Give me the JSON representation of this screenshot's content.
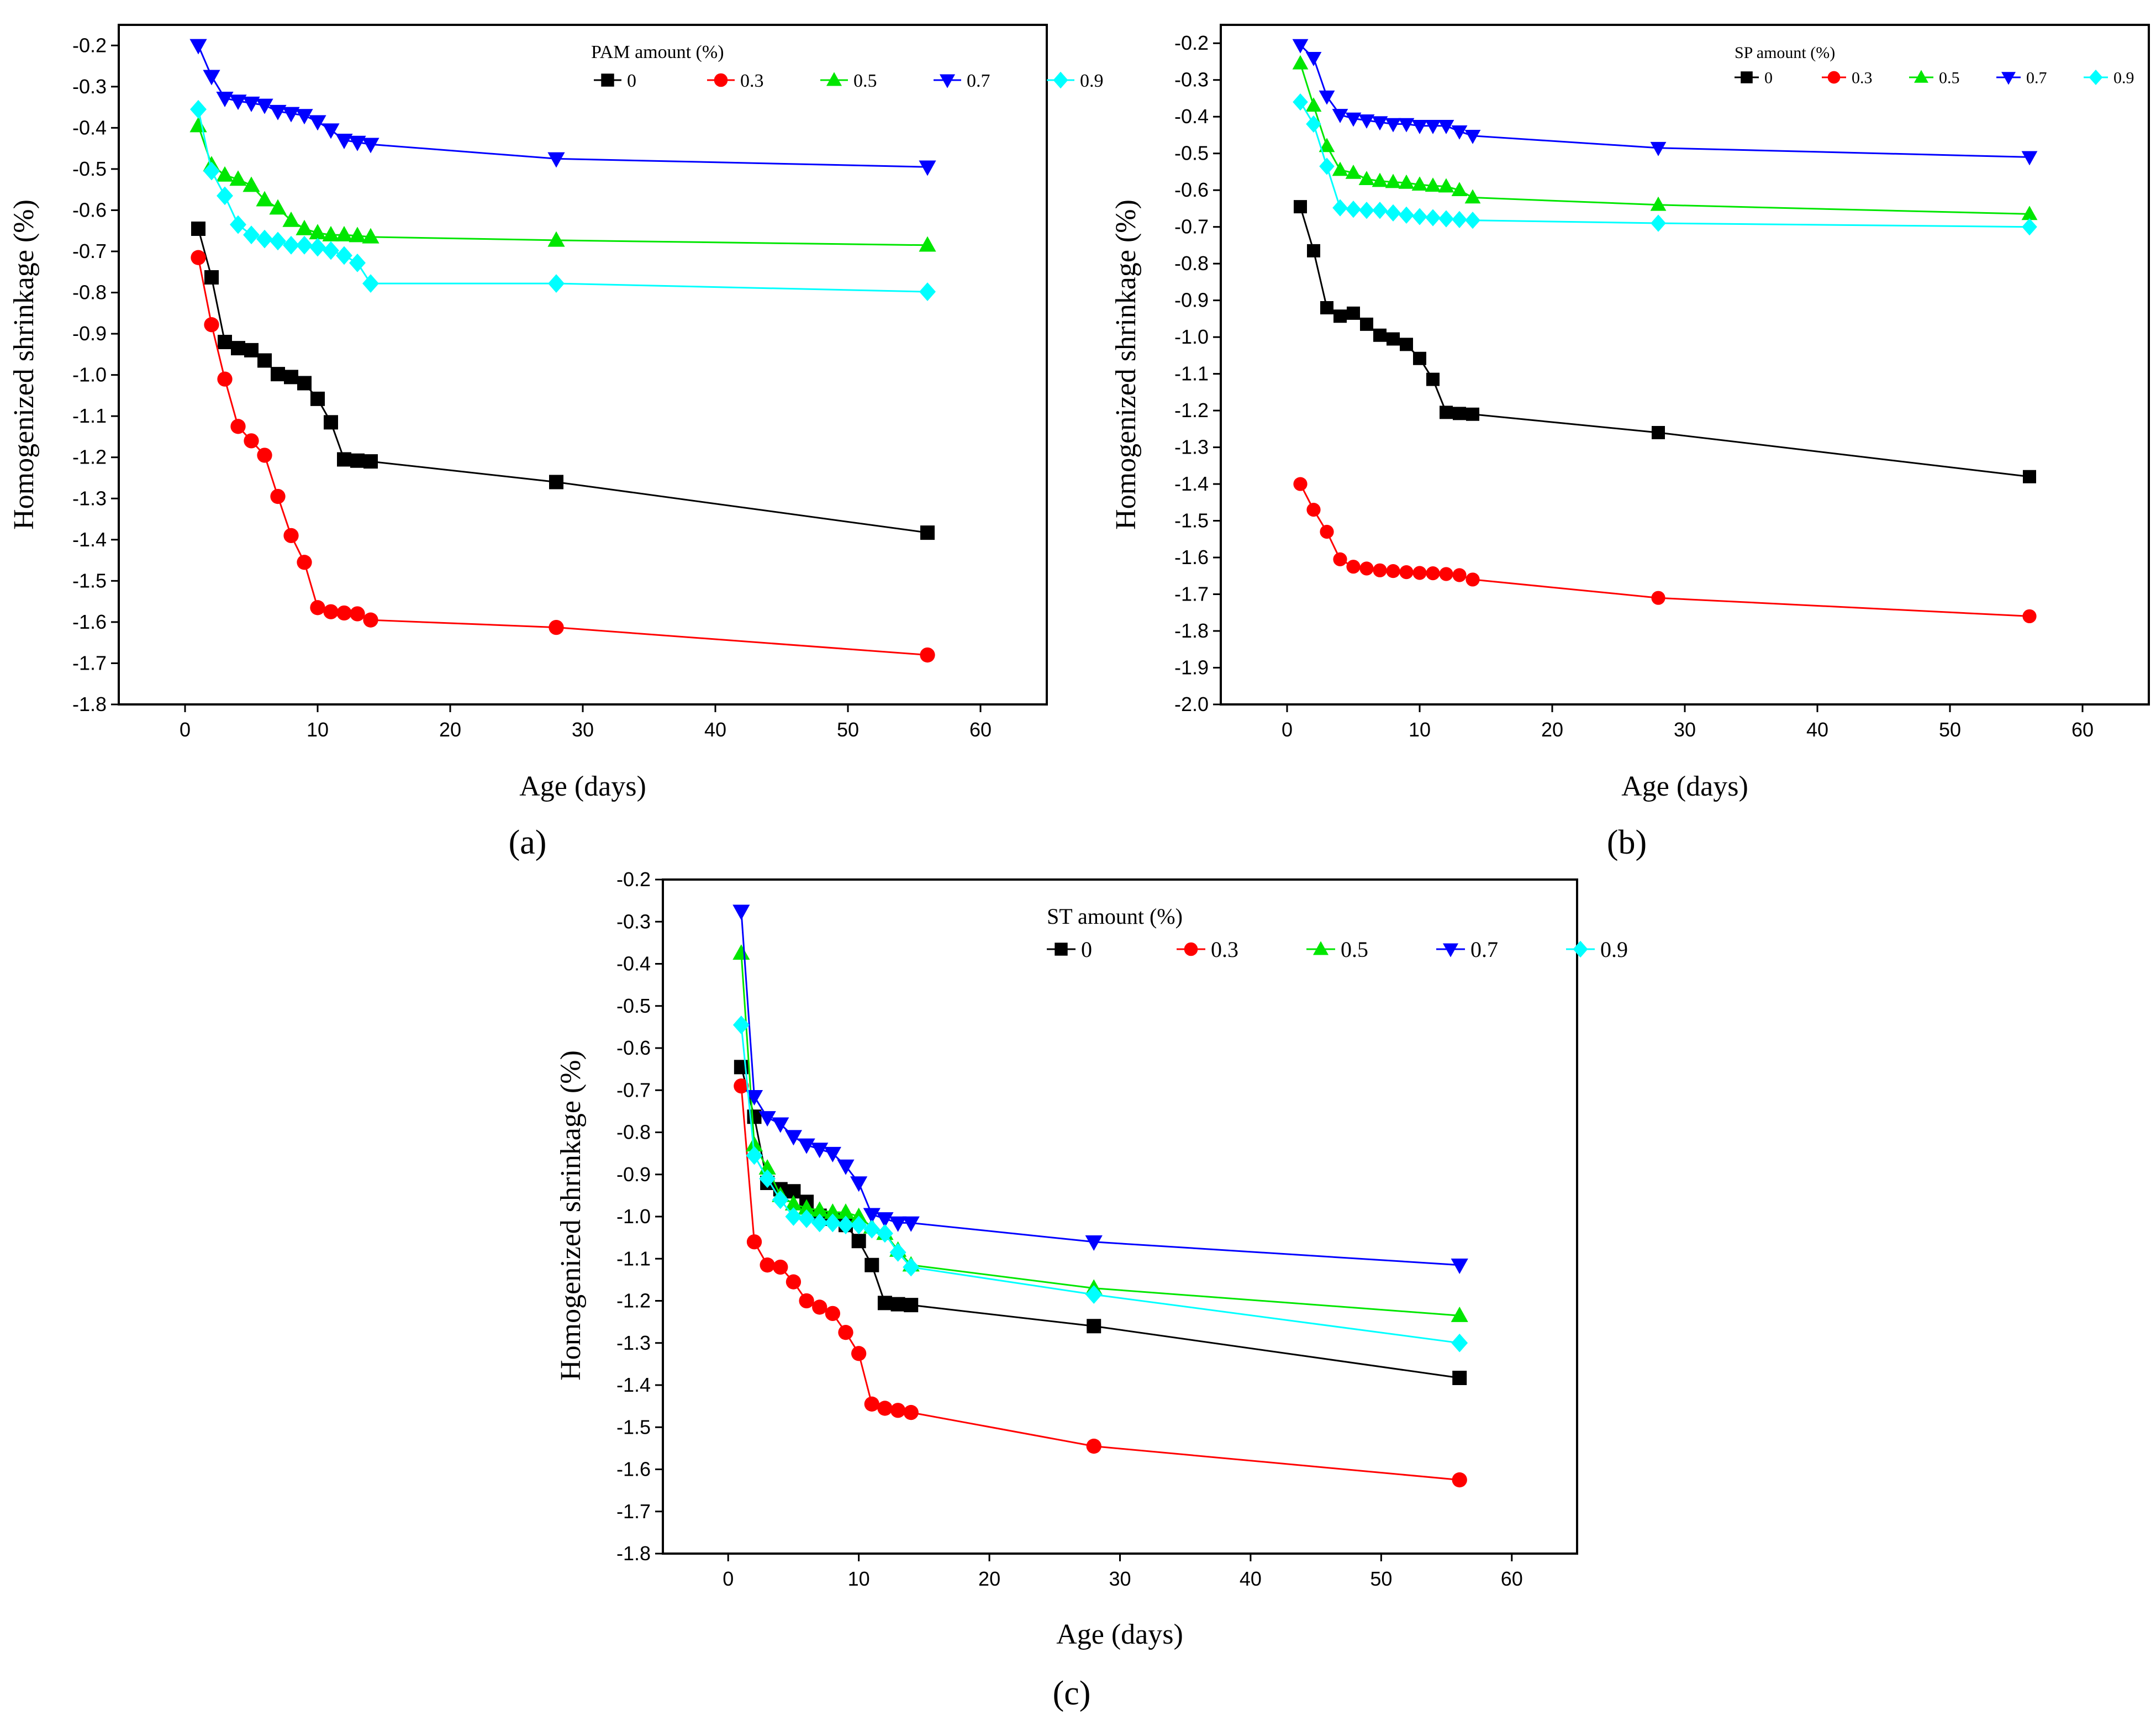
{
  "series_colors": {
    "0": "#000000",
    "0.3": "#ff0000",
    "0.5": "#00e600",
    "0.7": "#0000ff",
    "0.9": "#00ffff"
  },
  "chart_data": [
    {
      "type": "line",
      "panel": "(a)",
      "xlabel": "Age (days)",
      "ylabel": "Homogenized shrinkage (%)",
      "xlim": [
        -5,
        65
      ],
      "ylim": [
        -1.8,
        -0.15
      ],
      "xticks": [
        0,
        10,
        20,
        30,
        40,
        50,
        60
      ],
      "yticks": [
        -0.2,
        -0.3,
        -0.4,
        -0.5,
        -0.6,
        -0.7,
        -0.8,
        -0.9,
        -1.0,
        -1.1,
        -1.2,
        -1.3,
        -1.4,
        -1.5,
        -1.6,
        -1.7,
        -1.8
      ],
      "ytick_labels": [
        "-0.2",
        "-0.3",
        "-0.4",
        "-0.5",
        "-0.6",
        "-0.7",
        "-0.8",
        "-0.9",
        "-1.0",
        "-1.1",
        "-1.2",
        "-1.3",
        "-1.4",
        "-1.5",
        "-1.6",
        "-1.7",
        "-1.8"
      ],
      "legend_title": "PAM amount (%)",
      "legend_position": "top-right",
      "x": [
        1,
        2,
        3,
        4,
        5,
        6,
        7,
        8,
        9,
        10,
        11,
        12,
        13,
        14,
        28,
        56
      ],
      "series": [
        {
          "name": "0",
          "marker": "square",
          "values": [
            -0.645,
            -0.763,
            -0.92,
            -0.935,
            -0.94,
            -0.965,
            -0.998,
            -1.005,
            -1.02,
            -1.058,
            -1.115,
            -1.205,
            -1.208,
            -1.21,
            -1.26,
            -1.383
          ]
        },
        {
          "name": "0.3",
          "marker": "circle",
          "values": [
            -0.715,
            -0.878,
            -1.01,
            -1.125,
            -1.16,
            -1.195,
            -1.295,
            -1.39,
            -1.455,
            -1.565,
            -1.575,
            -1.578,
            -1.58,
            -1.595,
            -1.613,
            -1.68
          ]
        },
        {
          "name": "0.5",
          "marker": "triangle-up",
          "values": [
            -0.395,
            -0.49,
            -0.515,
            -0.525,
            -0.54,
            -0.575,
            -0.595,
            -0.625,
            -0.645,
            -0.655,
            -0.66,
            -0.66,
            -0.662,
            -0.665,
            -0.673,
            -0.685
          ]
        },
        {
          "name": "0.7",
          "marker": "triangle-down",
          "values": [
            -0.2,
            -0.275,
            -0.328,
            -0.335,
            -0.34,
            -0.345,
            -0.36,
            -0.365,
            -0.37,
            -0.385,
            -0.405,
            -0.43,
            -0.435,
            -0.44,
            -0.475,
            -0.495
          ]
        },
        {
          "name": "0.9",
          "marker": "diamond",
          "values": [
            -0.355,
            -0.505,
            -0.565,
            -0.635,
            -0.66,
            -0.67,
            -0.675,
            -0.685,
            -0.685,
            -0.69,
            -0.698,
            -0.71,
            -0.728,
            -0.778,
            -0.778,
            -0.798
          ]
        }
      ]
    },
    {
      "type": "line",
      "panel": "(b)",
      "xlabel": "Age (days)",
      "ylabel": "Homogenized shrinkage (%)",
      "xlim": [
        -5,
        65
      ],
      "ylim": [
        -2.0,
        -0.15
      ],
      "xticks": [
        0,
        10,
        20,
        30,
        40,
        50,
        60
      ],
      "yticks": [
        -0.2,
        -0.3,
        -0.4,
        -0.5,
        -0.6,
        -0.7,
        -0.8,
        -0.9,
        -1.0,
        -1.1,
        -1.2,
        -1.3,
        -1.4,
        -1.5,
        -1.6,
        -1.7,
        -1.8,
        -1.9,
        -2.0
      ],
      "ytick_labels": [
        "-0.2",
        "-0.3",
        "-0.4",
        "-0.5",
        "-0.6",
        "-0.7",
        "-0.8",
        "-0.9",
        "-1.0",
        "-1.1",
        "-1.2",
        "-1.3",
        "-1.4",
        "-1.5",
        "-1.6",
        "-1.7",
        "-1.8",
        "-1.9",
        "-2.0"
      ],
      "legend_title": "SP amount (%)",
      "legend_position": "top-right",
      "x": [
        1,
        2,
        3,
        4,
        5,
        6,
        7,
        8,
        9,
        10,
        11,
        12,
        13,
        14,
        28,
        56
      ],
      "series": [
        {
          "name": "0",
          "marker": "square",
          "values": [
            -0.645,
            -0.765,
            -0.92,
            -0.943,
            -0.935,
            -0.965,
            -0.995,
            -1.005,
            -1.02,
            -1.058,
            -1.115,
            -1.205,
            -1.208,
            -1.21,
            -1.26,
            -1.38
          ]
        },
        {
          "name": "0.3",
          "marker": "circle",
          "values": [
            -1.4,
            -1.47,
            -1.53,
            -1.605,
            -1.625,
            -1.63,
            -1.635,
            -1.637,
            -1.64,
            -1.642,
            -1.643,
            -1.645,
            -1.648,
            -1.66,
            -1.71,
            -1.76
          ]
        },
        {
          "name": "0.5",
          "marker": "triangle-up",
          "values": [
            -0.255,
            -0.37,
            -0.48,
            -0.545,
            -0.553,
            -0.57,
            -0.575,
            -0.578,
            -0.58,
            -0.585,
            -0.588,
            -0.59,
            -0.6,
            -0.62,
            -0.64,
            -0.665
          ]
        },
        {
          "name": "0.7",
          "marker": "triangle-down",
          "values": [
            -0.205,
            -0.24,
            -0.345,
            -0.395,
            -0.405,
            -0.41,
            -0.415,
            -0.42,
            -0.42,
            -0.425,
            -0.425,
            -0.425,
            -0.44,
            -0.452,
            -0.485,
            -0.51
          ]
        },
        {
          "name": "0.9",
          "marker": "diamond",
          "values": [
            -0.36,
            -0.42,
            -0.535,
            -0.648,
            -0.652,
            -0.655,
            -0.655,
            -0.662,
            -0.668,
            -0.672,
            -0.675,
            -0.678,
            -0.68,
            -0.682,
            -0.69,
            -0.7
          ]
        }
      ]
    },
    {
      "type": "line",
      "panel": "(c)",
      "xlabel": "Age (days)",
      "ylabel": "Homogenized shrinkage (%)",
      "xlim": [
        -5,
        65
      ],
      "ylim": [
        -1.8,
        -0.2
      ],
      "xticks": [
        0,
        10,
        20,
        30,
        40,
        50,
        60
      ],
      "yticks": [
        -0.2,
        -0.3,
        -0.4,
        -0.5,
        -0.6,
        -0.7,
        -0.8,
        -0.9,
        -1.0,
        -1.1,
        -1.2,
        -1.3,
        -1.4,
        -1.5,
        -1.6,
        -1.7,
        -1.8
      ],
      "ytick_labels": [
        "-0.2",
        "-0.3",
        "-0.4",
        "-0.5",
        "-0.6",
        "-0.7",
        "-0.8",
        "-0.9",
        "-1.0",
        "-1.1",
        "-1.2",
        "-1.3",
        "-1.4",
        "-1.5",
        "-1.6",
        "-1.7",
        "-1.8"
      ],
      "legend_title": "ST amount (%)",
      "legend_position": "top-right",
      "x": [
        1,
        2,
        3,
        4,
        5,
        6,
        7,
        8,
        9,
        10,
        11,
        12,
        13,
        14,
        28,
        56
      ],
      "series": [
        {
          "name": "0",
          "marker": "square",
          "values": [
            -0.645,
            -0.763,
            -0.92,
            -0.935,
            -0.94,
            -0.965,
            -0.998,
            -1.005,
            -1.02,
            -1.058,
            -1.115,
            -1.205,
            -1.208,
            -1.21,
            -1.26,
            -1.383
          ]
        },
        {
          "name": "0.3",
          "marker": "circle",
          "values": [
            -0.69,
            -1.06,
            -1.115,
            -1.12,
            -1.155,
            -1.2,
            -1.215,
            -1.23,
            -1.275,
            -1.325,
            -1.445,
            -1.455,
            -1.46,
            -1.465,
            -1.545,
            -1.625
          ]
        },
        {
          "name": "0.5",
          "marker": "triangle-up",
          "values": [
            -0.375,
            -0.83,
            -0.885,
            -0.95,
            -0.97,
            -0.98,
            -0.985,
            -0.99,
            -0.99,
            -1.0,
            -1.025,
            -1.04,
            -1.08,
            -1.115,
            -1.17,
            -1.235
          ]
        },
        {
          "name": "0.7",
          "marker": "triangle-down",
          "values": [
            -0.275,
            -0.715,
            -0.765,
            -0.78,
            -0.81,
            -0.83,
            -0.84,
            -0.85,
            -0.88,
            -0.92,
            -0.995,
            -1.005,
            -1.015,
            -1.015,
            -1.06,
            -1.115
          ]
        },
        {
          "name": "0.9",
          "marker": "diamond",
          "values": [
            -0.545,
            -0.855,
            -0.91,
            -0.96,
            -1.0,
            -1.005,
            -1.015,
            -1.015,
            -1.02,
            -1.02,
            -1.03,
            -1.04,
            -1.085,
            -1.12,
            -1.185,
            -1.3
          ]
        }
      ]
    }
  ]
}
